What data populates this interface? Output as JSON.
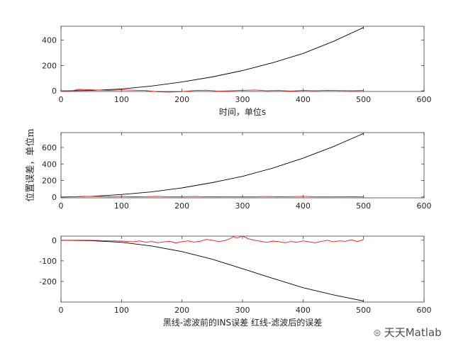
{
  "chart_data": [
    {
      "type": "line",
      "title": "",
      "xlabel": "时间，单位s",
      "ylabel": "",
      "xlim": [
        0,
        600
      ],
      "ylim": [
        -5,
        510
      ],
      "xticks": [
        0,
        100,
        200,
        300,
        400,
        500,
        600
      ],
      "yticks": [
        0,
        200,
        400
      ],
      "grid": false,
      "series": [
        {
          "color": "#000000",
          "x": [
            0,
            50,
            100,
            150,
            200,
            250,
            300,
            350,
            400,
            450,
            500
          ],
          "y": [
            0,
            3,
            15,
            38,
            70,
            110,
            160,
            222,
            295,
            390,
            500
          ]
        },
        {
          "color": "#e0191b",
          "x": [
            0,
            20,
            30,
            40,
            50,
            60,
            80,
            100,
            120,
            140,
            160,
            180,
            200,
            220,
            240,
            260,
            280,
            300,
            320,
            340,
            360,
            380,
            400,
            420,
            440,
            460,
            480,
            500
          ],
          "y": [
            0,
            2,
            12,
            10,
            8,
            6,
            4,
            8,
            5,
            2,
            -8,
            -10,
            -6,
            2,
            5,
            -3,
            0,
            4,
            7,
            1,
            3,
            -2,
            3,
            1,
            4,
            2,
            1,
            2
          ]
        }
      ]
    },
    {
      "type": "line",
      "title": "",
      "xlabel": "",
      "ylabel": "位置误差，单位m",
      "xlim": [
        0,
        600
      ],
      "ylim": [
        -10,
        780
      ],
      "xticks": [
        0,
        100,
        200,
        300,
        400,
        500,
        600
      ],
      "yticks": [
        0,
        200,
        400,
        600
      ],
      "grid": false,
      "series": [
        {
          "color": "#000000",
          "x": [
            0,
            50,
            100,
            150,
            200,
            250,
            300,
            350,
            400,
            450,
            500
          ],
          "y": [
            0,
            8,
            30,
            62,
            110,
            175,
            250,
            350,
            470,
            610,
            770
          ]
        },
        {
          "color": "#e0191b",
          "x": [
            0,
            20,
            40,
            60,
            80,
            100,
            120,
            140,
            160,
            180,
            200,
            220,
            240,
            260,
            280,
            300,
            320,
            340,
            360,
            380,
            400,
            420,
            440,
            460,
            480,
            500
          ],
          "y": [
            0,
            2,
            6,
            8,
            4,
            6,
            3,
            5,
            8,
            2,
            4,
            6,
            2,
            3,
            5,
            2,
            4,
            6,
            3,
            5,
            8,
            4,
            2,
            5,
            3,
            4
          ]
        }
      ]
    },
    {
      "type": "line",
      "title": "",
      "xlabel": "黑线-滤波前的INS误差   红线-滤波后的误差",
      "ylabel": "",
      "xlim": [
        0,
        600
      ],
      "ylim": [
        -300,
        20
      ],
      "xticks": [
        0,
        100,
        200,
        300,
        400,
        500,
        600
      ],
      "yticks": [
        -200,
        -100,
        0
      ],
      "grid": false,
      "series": [
        {
          "color": "#000000",
          "x": [
            0,
            50,
            100,
            150,
            200,
            250,
            300,
            350,
            400,
            450,
            500
          ],
          "y": [
            0,
            -2,
            -10,
            -28,
            -55,
            -92,
            -138,
            -185,
            -230,
            -265,
            -295
          ]
        },
        {
          "color": "#e0191b",
          "x": [
            0,
            40,
            60,
            80,
            100,
            110,
            120,
            130,
            140,
            150,
            160,
            170,
            180,
            190,
            200,
            210,
            220,
            230,
            240,
            250,
            260,
            270,
            280,
            285,
            290,
            300,
            310,
            320,
            330,
            340,
            350,
            360,
            370,
            380,
            390,
            400,
            410,
            420,
            430,
            440,
            450,
            460,
            470,
            480,
            490,
            500
          ],
          "y": [
            0,
            0,
            -1,
            -3,
            -4,
            -6,
            -8,
            -3,
            -10,
            -6,
            -12,
            -8,
            -5,
            -13,
            -7,
            -3,
            -9,
            -5,
            4,
            0,
            -6,
            -2,
            8,
            18,
            10,
            20,
            7,
            0,
            -5,
            -10,
            -4,
            -7,
            -12,
            -6,
            -10,
            -3,
            -8,
            -12,
            -6,
            0,
            -8,
            -3,
            -5,
            2,
            -6,
            3
          ]
        }
      ]
    }
  ],
  "watermark": {
    "text": "天天Matlab"
  }
}
